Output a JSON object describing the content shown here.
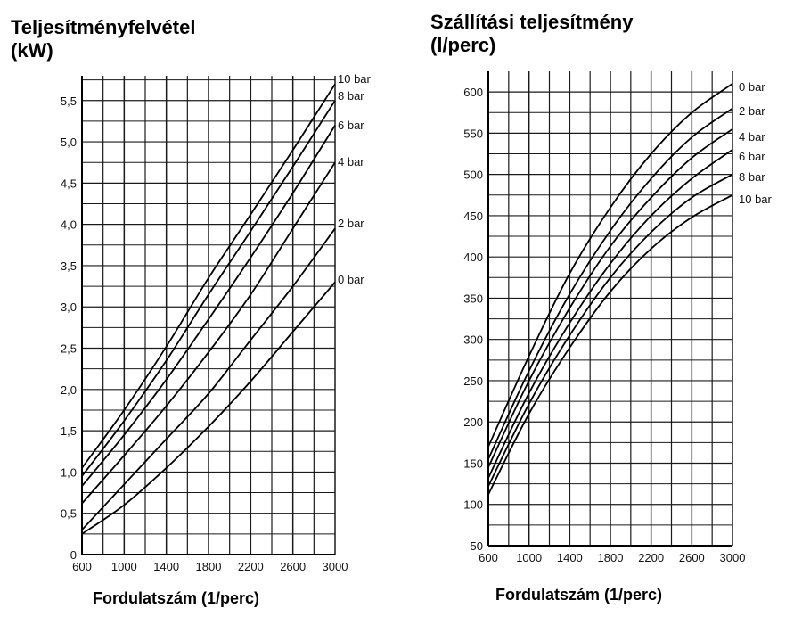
{
  "chart_data": [
    {
      "type": "line",
      "title": "Teljesítményfelvétel",
      "title_unit": "(kW)",
      "xlabel": "Fordulatszám (1/perc)",
      "ylabel": "Teljesítményfelvétel (kW)",
      "xlim": [
        600,
        3000
      ],
      "ylim": [
        0,
        5.8
      ],
      "x_ticks": [
        600,
        1000,
        1400,
        1800,
        2200,
        2600,
        3000
      ],
      "y_ticks": [
        0,
        0.5,
        1.0,
        1.5,
        2.0,
        2.5,
        3.0,
        3.5,
        4.0,
        4.5,
        5.0,
        5.5
      ],
      "y_tick_labels": [
        "0",
        "0,5",
        "1,0",
        "1,5",
        "2,0",
        "2,5",
        "3,0",
        "3,5",
        "4,0",
        "4,5",
        "5,0",
        "5,5"
      ],
      "grid": true,
      "x": [
        600,
        1000,
        1400,
        1800,
        2200,
        2600,
        3000
      ],
      "series": [
        {
          "name": "10 bar",
          "values": [
            1.05,
            1.75,
            2.52,
            3.35,
            4.12,
            4.9,
            5.7
          ]
        },
        {
          "name": "8 bar",
          "values": [
            0.95,
            1.62,
            2.35,
            3.15,
            3.92,
            4.7,
            5.5
          ]
        },
        {
          "name": "6 bar",
          "values": [
            0.83,
            1.45,
            2.12,
            2.85,
            3.6,
            4.38,
            5.2
          ]
        },
        {
          "name": "4 bar",
          "values": [
            0.62,
            1.2,
            1.8,
            2.45,
            3.15,
            3.95,
            4.75
          ]
        },
        {
          "name": "2 bar",
          "values": [
            0.3,
            0.85,
            1.4,
            1.95,
            2.6,
            3.25,
            3.95
          ]
        },
        {
          "name": "0 bar",
          "values": [
            0.25,
            0.6,
            1.05,
            1.55,
            2.1,
            2.7,
            3.3
          ]
        }
      ]
    },
    {
      "type": "line",
      "title": "Szállítási teljesítmény",
      "title_unit": "(l/perc)",
      "xlabel": "Fordulatszám (1/perc)",
      "ylabel": "Szállítási teljesítmény (l/perc)",
      "xlim": [
        600,
        3000
      ],
      "ylim": [
        50,
        625
      ],
      "x_ticks": [
        600,
        1000,
        1400,
        1800,
        2200,
        2600,
        3000
      ],
      "y_ticks": [
        50,
        100,
        150,
        200,
        250,
        300,
        350,
        400,
        450,
        500,
        550,
        600
      ],
      "y_tick_labels": [
        "50",
        "100",
        "150",
        "200",
        "250",
        "300",
        "350",
        "400",
        "450",
        "500",
        "550",
        "600"
      ],
      "grid": true,
      "x": [
        600,
        1000,
        1400,
        1800,
        2200,
        2600,
        3000
      ],
      "series": [
        {
          "name": "0 bar",
          "values": [
            170,
            280,
            380,
            460,
            525,
            575,
            610
          ]
        },
        {
          "name": "2 bar",
          "values": [
            155,
            262,
            355,
            432,
            495,
            545,
            580
          ]
        },
        {
          "name": "4 bar",
          "values": [
            145,
            250,
            338,
            413,
            472,
            520,
            555
          ]
        },
        {
          "name": "6 bar",
          "values": [
            132,
            235,
            320,
            392,
            450,
            495,
            530
          ]
        },
        {
          "name": "8 bar",
          "values": [
            122,
            222,
            305,
            375,
            430,
            472,
            500
          ]
        },
        {
          "name": "10 bar",
          "values": [
            112,
            210,
            290,
            358,
            410,
            448,
            475
          ]
        }
      ]
    }
  ]
}
